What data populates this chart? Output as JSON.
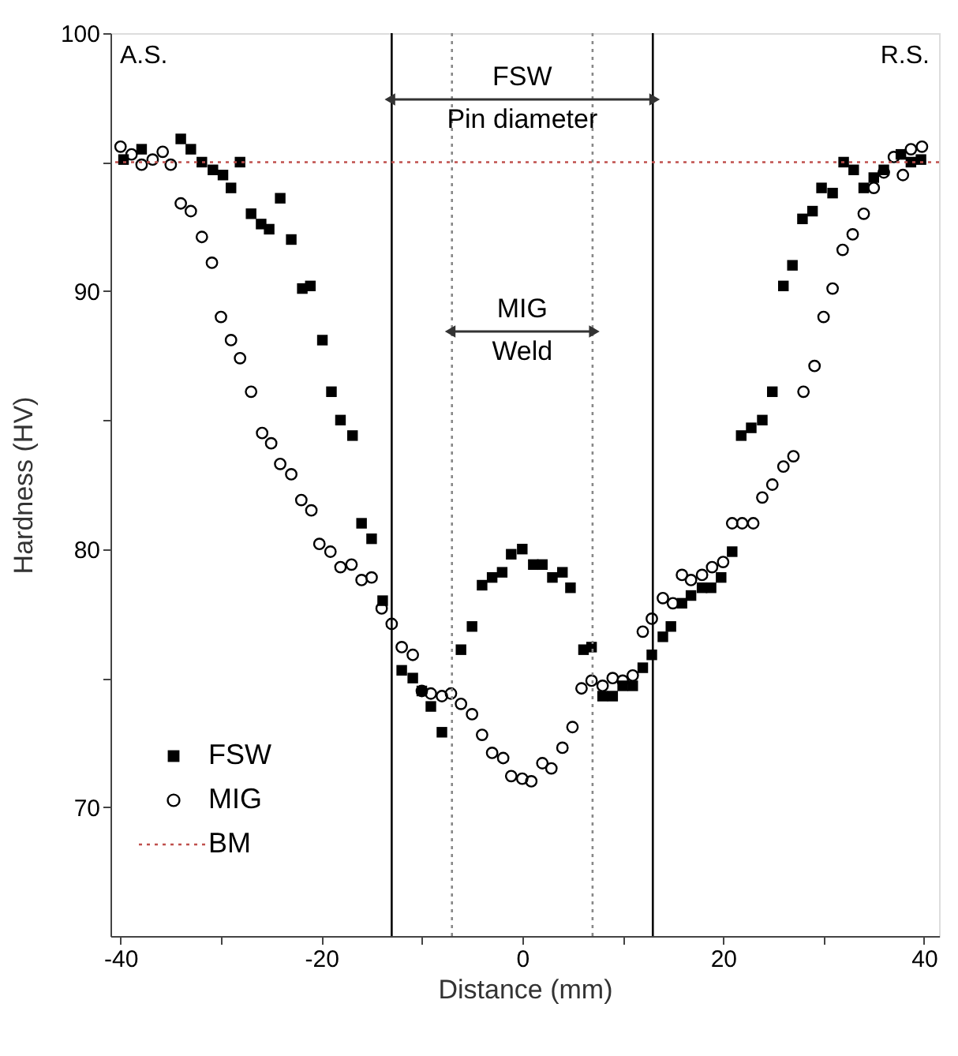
{
  "chart_data": {
    "type": "scatter",
    "xlabel": "Distance (mm)",
    "ylabel": "Hardness (HV)",
    "xlim": [
      -41,
      41.5
    ],
    "ylim": [
      65,
      100
    ],
    "xticks": [
      -40,
      {
        "value": -30,
        "label": null
      },
      -20,
      {
        "value": -10,
        "label": null
      },
      0,
      {
        "value": 10,
        "label": null
      },
      20,
      {
        "value": 30,
        "label": null
      },
      40
    ],
    "yticks": [
      70,
      {
        "value": 75,
        "label": null
      },
      80,
      {
        "value": 85,
        "label": null
      },
      90,
      {
        "value": 95,
        "label": null
      },
      100
    ],
    "grid": false,
    "legend": "bottom left",
    "series": [
      {
        "name": "FSW",
        "color": "#000000",
        "marker": "square",
        "x": [
          -39.7,
          -37.9,
          -34,
          -33,
          -31.9,
          -30.8,
          -29.8,
          -29,
          -28.1,
          -27,
          -26,
          -25.2,
          -24.1,
          -23,
          -21.9,
          -21.1,
          -19.9,
          -19,
          -18.1,
          -16.9,
          -16,
          -15,
          -13.9,
          -12,
          -10.9,
          -10,
          -9.1,
          -8,
          -6.1,
          -5,
          -4,
          -3,
          -2,
          -1.1,
          0,
          1.1,
          2,
          3,
          4,
          4.8,
          6.1,
          6.9,
          8,
          9,
          10,
          11,
          12,
          12.9,
          14,
          14.8,
          15.9,
          16.8,
          17.9,
          18.8,
          19.8,
          20.9,
          21.8,
          22.8,
          23.9,
          24.9,
          26,
          26.9,
          27.9,
          28.9,
          29.8,
          30.9,
          32,
          33,
          34,
          35,
          36,
          37.7,
          38.7,
          39.7
        ],
        "values": [
          95.1,
          95.5,
          95.9,
          95.5,
          95.0,
          94.7,
          94.5,
          94.0,
          95.0,
          93.0,
          92.6,
          92.4,
          93.6,
          92.0,
          90.1,
          90.2,
          88.1,
          86.1,
          85.0,
          84.4,
          81.0,
          80.4,
          78.0,
          75.3,
          75.0,
          74.5,
          73.9,
          72.9,
          76.1,
          77.0,
          78.6,
          78.9,
          79.1,
          79.8,
          80.0,
          79.4,
          79.4,
          78.9,
          79.1,
          78.5,
          76.1,
          76.2,
          74.3,
          74.3,
          74.7,
          74.7,
          75.4,
          75.9,
          76.6,
          77.0,
          77.9,
          78.2,
          78.5,
          78.5,
          78.9,
          79.9,
          84.4,
          84.7,
          85.0,
          86.1,
          90.2,
          91.0,
          92.8,
          93.1,
          94.0,
          93.8,
          95.0,
          94.7,
          94.0,
          94.4,
          94.7,
          95.3,
          95.0,
          95.1
        ]
      },
      {
        "name": "MIG",
        "color": "#000000",
        "marker": "circle",
        "x": [
          -40,
          -38.9,
          -37.9,
          -36.8,
          -35.8,
          -35,
          -34,
          -33,
          -31.9,
          -30.9,
          -30,
          -29,
          -28.1,
          -27,
          -25.9,
          -25,
          -24.1,
          -23,
          -22,
          -21,
          -20.2,
          -19.1,
          -18.1,
          -17,
          -16,
          -15,
          -14,
          -13,
          -12,
          -10.9,
          -10,
          -9.1,
          -8,
          -7.1,
          -6.1,
          -5,
          -4,
          -3,
          -1.9,
          -1.1,
          0,
          0.9,
          2,
          2.9,
          4,
          5,
          5.9,
          6.9,
          8,
          9,
          10,
          11,
          12,
          12.9,
          14,
          15,
          15.9,
          16.8,
          17.9,
          18.9,
          20,
          20.9,
          21.9,
          23,
          23.9,
          24.9,
          26,
          27,
          28,
          29.1,
          30,
          30.9,
          31.9,
          32.9,
          34,
          35,
          36,
          37,
          37.9,
          38.7,
          39.8
        ],
        "values": [
          95.6,
          95.3,
          94.9,
          95.1,
          95.4,
          94.9,
          93.4,
          93.1,
          92.1,
          91.1,
          89.0,
          88.1,
          87.4,
          86.1,
          84.5,
          84.1,
          83.3,
          82.9,
          81.9,
          81.5,
          80.2,
          79.9,
          79.3,
          79.4,
          78.8,
          78.9,
          77.7,
          77.1,
          76.2,
          75.9,
          74.5,
          74.4,
          74.3,
          74.4,
          74.0,
          73.6,
          72.8,
          72.1,
          71.9,
          71.2,
          71.1,
          71.0,
          71.7,
          71.5,
          72.3,
          73.1,
          74.6,
          74.9,
          74.7,
          75.0,
          74.9,
          75.1,
          76.8,
          77.3,
          78.1,
          77.9,
          79.0,
          78.8,
          79.0,
          79.3,
          79.5,
          81.0,
          81.0,
          81.0,
          82.0,
          82.5,
          83.2,
          83.6,
          86.1,
          87.1,
          89.0,
          90.1,
          91.6,
          92.2,
          93.0,
          94.0,
          94.6,
          95.2,
          94.5,
          95.5,
          95.6
        ]
      }
    ],
    "ref_lines": [
      {
        "axis": "x",
        "value": -13,
        "color": "#000000",
        "line_style": "solid"
      },
      {
        "axis": "x",
        "value": 13,
        "color": "#000000",
        "line_style": "solid"
      },
      {
        "axis": "x",
        "value": -7,
        "color": "#888888",
        "line_style": "dotted"
      },
      {
        "axis": "x",
        "value": 7,
        "color": "#888888",
        "line_style": "dotted"
      },
      {
        "axis": "y",
        "value": 95,
        "label": "BM",
        "color": "#c0504d",
        "line_style": "dotted"
      }
    ],
    "annotations": [
      "A.S.",
      "R.S.",
      "FSW",
      "Pin diameter",
      "MIG",
      "Weld"
    ]
  }
}
